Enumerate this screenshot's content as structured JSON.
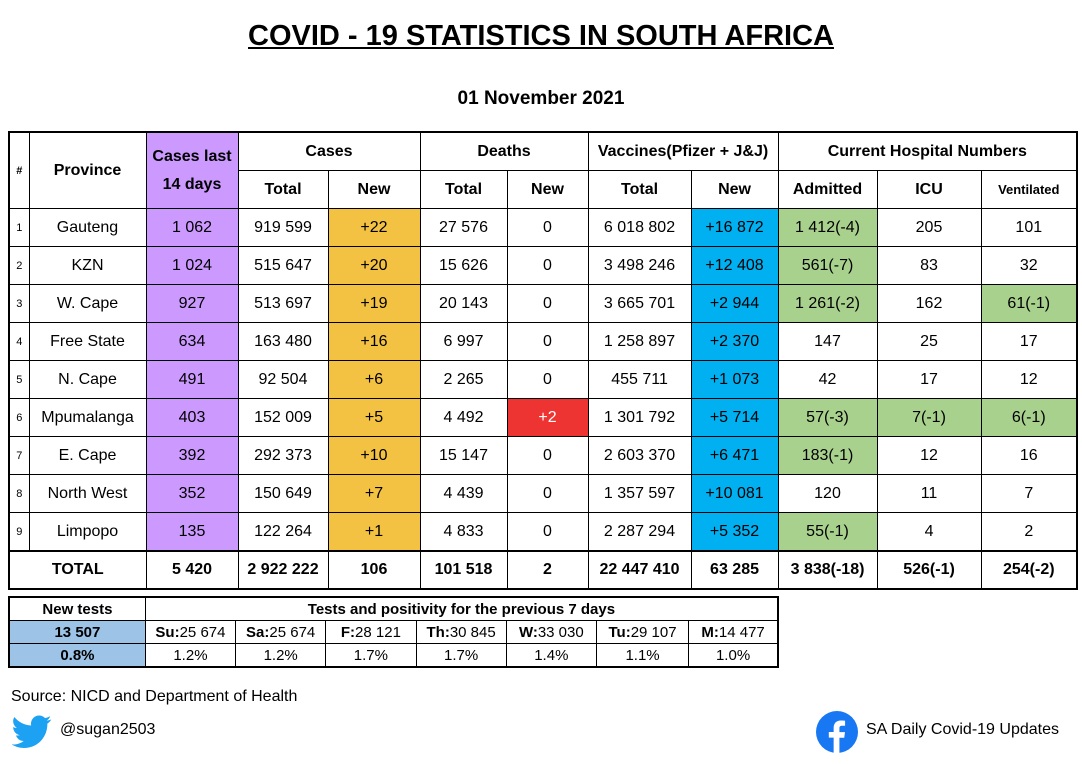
{
  "title": "COVID - 19 STATISTICS IN SOUTH AFRICA",
  "date": "01 November 2021",
  "headers": {
    "hash": "#",
    "province": "Province",
    "cases14_line1": "Cases last",
    "cases14_line2": "14 days",
    "cases": "Cases",
    "deaths": "Deaths",
    "vaccines": "Vaccines(Pfizer + J&J)",
    "hospital": "Current Hospital Numbers",
    "total": "Total",
    "new": "New",
    "admitted": "Admitted",
    "icu": "ICU",
    "ventilated": "Ventilated"
  },
  "rows": [
    {
      "idx": "1",
      "province": "Gauteng",
      "cases14": "1 062",
      "cases_total": "919 599",
      "cases_new": "+22",
      "deaths_total": "27 576",
      "deaths_new": "0",
      "vacc_total": "6 018 802",
      "vacc_new": "+16 872",
      "admitted": "1 412(-4)",
      "icu": "205",
      "vent": "101"
    },
    {
      "idx": "2",
      "province": "KZN",
      "cases14": "1 024",
      "cases_total": "515 647",
      "cases_new": "+20",
      "deaths_total": "15 626",
      "deaths_new": "0",
      "vacc_total": "3 498 246",
      "vacc_new": "+12 408",
      "admitted": "561(-7)",
      "icu": "83",
      "vent": "32"
    },
    {
      "idx": "3",
      "province": "W. Cape",
      "cases14": "927",
      "cases_total": "513 697",
      "cases_new": "+19",
      "deaths_total": "20 143",
      "deaths_new": "0",
      "vacc_total": "3 665 701",
      "vacc_new": "+2 944",
      "admitted": "1 261(-2)",
      "icu": "162",
      "vent": "61(-1)"
    },
    {
      "idx": "4",
      "province": "Free State",
      "cases14": "634",
      "cases_total": "163 480",
      "cases_new": "+16",
      "deaths_total": "6 997",
      "deaths_new": "0",
      "vacc_total": "1 258 897",
      "vacc_new": "+2 370",
      "admitted": "147",
      "icu": "25",
      "vent": "17"
    },
    {
      "idx": "5",
      "province": "N. Cape",
      "cases14": "491",
      "cases_total": "92 504",
      "cases_new": "+6",
      "deaths_total": "2 265",
      "deaths_new": "0",
      "vacc_total": "455 711",
      "vacc_new": "+1 073",
      "admitted": "42",
      "icu": "17",
      "vent": "12"
    },
    {
      "idx": "6",
      "province": "Mpumalanga",
      "cases14": "403",
      "cases_total": "152 009",
      "cases_new": "+5",
      "deaths_total": "4 492",
      "deaths_new": "+2",
      "vacc_total": "1 301 792",
      "vacc_new": "+5 714",
      "admitted": "57(-3)",
      "icu": "7(-1)",
      "vent": "6(-1)"
    },
    {
      "idx": "7",
      "province": "E. Cape",
      "cases14": "392",
      "cases_total": "292 373",
      "cases_new": "+10",
      "deaths_total": "15 147",
      "deaths_new": "0",
      "vacc_total": "2 603 370",
      "vacc_new": "+6 471",
      "admitted": "183(-1)",
      "icu": "12",
      "vent": "16"
    },
    {
      "idx": "8",
      "province": "North West",
      "cases14": "352",
      "cases_total": "150 649",
      "cases_new": "+7",
      "deaths_total": "4 439",
      "deaths_new": "0",
      "vacc_total": "1 357 597",
      "vacc_new": "+10 081",
      "admitted": "120",
      "icu": "11",
      "vent": "7"
    },
    {
      "idx": "9",
      "province": "Limpopo",
      "cases14": "135",
      "cases_total": "122 264",
      "cases_new": "+1",
      "deaths_total": "4 833",
      "deaths_new": "0",
      "vacc_total": "2 287 294",
      "vacc_new": "+5 352",
      "admitted": "55(-1)",
      "icu": "4",
      "vent": "2"
    }
  ],
  "totals": {
    "label": "TOTAL",
    "cases14": "5 420",
    "cases_total": "2 922 222",
    "cases_new": "106",
    "deaths_total": "101 518",
    "deaths_new": "2",
    "vacc_total": "22 447 410",
    "vacc_new": "63 285",
    "admitted": "3 838(-18)",
    "icu": "526(-1)",
    "vent": "254(-2)"
  },
  "tests": {
    "new_tests_label": "New tests",
    "period_label": "Tests and positivity for the previous 7 days",
    "new_tests_value": "13 507",
    "positivity": "0.8%",
    "days": [
      {
        "day": "Su:",
        "count": "25 674",
        "pct": "1.2%"
      },
      {
        "day": "Sa:",
        "count": "25 674",
        "pct": "1.2%"
      },
      {
        "day": "F:",
        "count": "28 121",
        "pct": "1.7%"
      },
      {
        "day": "Th:",
        "count": "30 845",
        "pct": "1.7%"
      },
      {
        "day": "W:",
        "count": "33 030",
        "pct": "1.4%"
      },
      {
        "day": "Tu:",
        "count": "29 107",
        "pct": "1.1%"
      },
      {
        "day": "M:",
        "count": "14 477",
        "pct": "1.0%"
      }
    ]
  },
  "footer": {
    "source": "Source: NICD and Department of Health",
    "twitter_handle": "@sugan2503",
    "facebook_page": "SA Daily Covid-19 Updates",
    "twitter_icon": "twitter-bird-icon",
    "facebook_icon": "facebook-f-icon"
  },
  "colors": {
    "cases14": "#cc99ff",
    "cases_new": "#f4c242",
    "vacc_new": "#00b0f0",
    "hospital_change": "#a9d18e",
    "death_alert": "#ee3333",
    "tests_highlight": "#9dc3e6",
    "twitter": "#1da1f2",
    "facebook": "#1877f2"
  },
  "highlights": {
    "admitted": [
      true,
      true,
      true,
      false,
      false,
      true,
      true,
      false,
      true
    ],
    "icu": [
      false,
      false,
      false,
      false,
      false,
      true,
      false,
      false,
      false
    ],
    "vent": [
      false,
      false,
      true,
      false,
      false,
      true,
      false,
      false,
      false
    ],
    "deaths_new": [
      false,
      false,
      false,
      false,
      false,
      true,
      false,
      false,
      false
    ]
  }
}
